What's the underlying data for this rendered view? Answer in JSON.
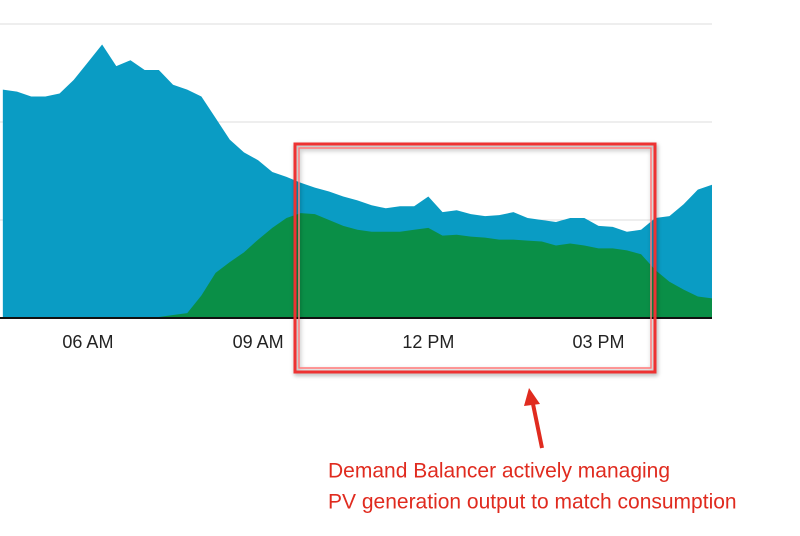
{
  "chart_data": {
    "type": "area",
    "x": [
      4.5,
      4.75,
      5.0,
      5.25,
      5.5,
      5.75,
      6.0,
      6.25,
      6.5,
      6.75,
      7.0,
      7.25,
      7.5,
      7.75,
      8.0,
      8.25,
      8.5,
      8.75,
      9.0,
      9.25,
      9.5,
      9.75,
      10.0,
      10.25,
      10.5,
      10.75,
      11.0,
      11.25,
      11.5,
      11.75,
      12.0,
      12.25,
      12.5,
      12.75,
      13.0,
      13.25,
      13.5,
      13.75,
      14.0,
      14.25,
      14.5,
      14.75,
      15.0,
      15.25,
      15.5,
      15.75,
      16.0,
      16.25,
      16.5,
      16.75,
      17.0
    ],
    "series": [
      {
        "color": "#0a9cc4",
        "values": [
          2.33,
          2.31,
          2.26,
          2.26,
          2.29,
          2.43,
          2.61,
          2.79,
          2.57,
          2.63,
          2.53,
          2.53,
          2.38,
          2.33,
          2.26,
          2.04,
          1.82,
          1.69,
          1.61,
          1.49,
          1.44,
          1.38,
          1.33,
          1.29,
          1.24,
          1.2,
          1.15,
          1.12,
          1.14,
          1.14,
          1.24,
          1.08,
          1.1,
          1.06,
          1.04,
          1.05,
          1.08,
          1.02,
          1.0,
          0.98,
          1.02,
          1.02,
          0.94,
          0.93,
          0.88,
          0.9,
          1.02,
          1.04,
          1.16,
          1.31,
          1.36
        ]
      },
      {
        "color": "#0a8f47",
        "values": [
          0,
          0,
          0,
          0,
          0,
          0,
          0,
          0,
          0,
          0,
          0,
          0.01,
          0.03,
          0.05,
          0.23,
          0.46,
          0.57,
          0.67,
          0.8,
          0.92,
          1.02,
          1.07,
          1.06,
          1.0,
          0.94,
          0.9,
          0.88,
          0.88,
          0.88,
          0.9,
          0.92,
          0.84,
          0.85,
          0.83,
          0.82,
          0.8,
          0.8,
          0.79,
          0.78,
          0.74,
          0.76,
          0.74,
          0.71,
          0.71,
          0.69,
          0.65,
          0.49,
          0.37,
          0.29,
          0.22,
          0.2
        ]
      }
    ],
    "xlim": [
      4.45,
      17
    ],
    "xticks": [
      {
        "value": 6,
        "label": "06 AM"
      },
      {
        "value": 9,
        "label": "09 AM"
      },
      {
        "value": 12,
        "label": "12 PM"
      },
      {
        "value": 15,
        "label": "03 PM"
      }
    ],
    "ylim": [
      0,
      3.02
    ],
    "yticks": [
      1,
      2,
      3
    ],
    "show_ytick_labels": false,
    "grid": true,
    "annotation": [
      "Demand Balancer actively managing",
      "PV generation output to match consumption"
    ],
    "annotation_color": "#e02b1f"
  }
}
